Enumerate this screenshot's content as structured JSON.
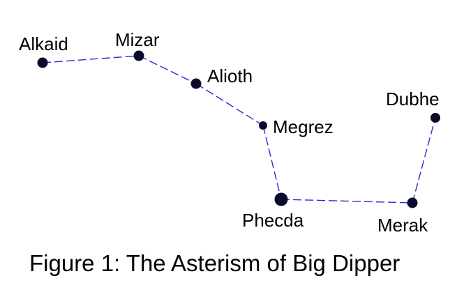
{
  "diagram": {
    "caption": "Figure 1: The Asterism of Big Dipper",
    "colors": {
      "star": "#0a0a2a",
      "line": "#2a2ad8",
      "text": "#000000"
    },
    "stars": [
      {
        "id": "alkaid",
        "name": "Alkaid"
      },
      {
        "id": "mizar",
        "name": "Mizar"
      },
      {
        "id": "alioth",
        "name": "Alioth"
      },
      {
        "id": "megrez",
        "name": "Megrez"
      },
      {
        "id": "phecda",
        "name": "Phecda"
      },
      {
        "id": "merak",
        "name": "Merak"
      },
      {
        "id": "dubhe",
        "name": "Dubhe"
      }
    ],
    "connections": [
      [
        "alkaid",
        "mizar"
      ],
      [
        "mizar",
        "alioth"
      ],
      [
        "alioth",
        "megrez"
      ],
      [
        "megrez",
        "phecda"
      ],
      [
        "phecda",
        "merak"
      ],
      [
        "merak",
        "dubhe"
      ]
    ]
  }
}
